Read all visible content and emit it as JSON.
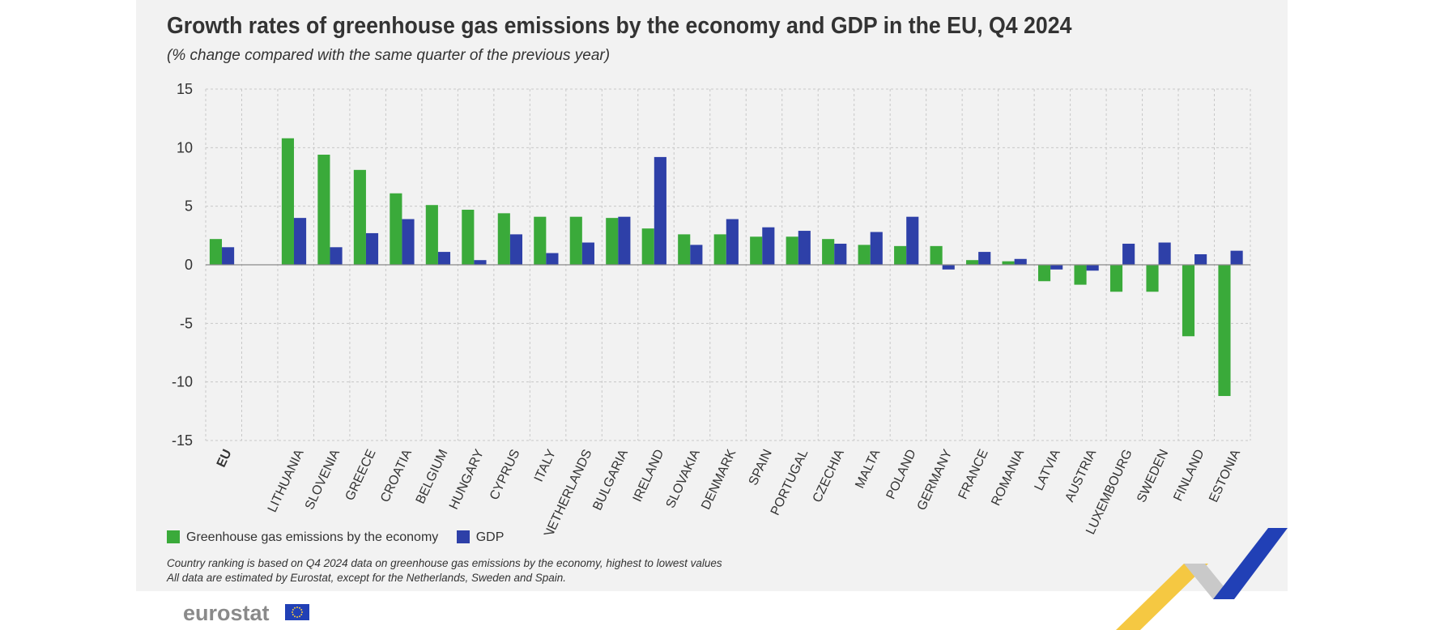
{
  "title": "Growth rates of greenhouse gas emissions by the economy and GDP in the EU, Q4 2024",
  "subtitle": "(% change compared with the same quarter of the previous year)",
  "notes": [
    "Country ranking is based on Q4 2024 data on greenhouse gas emissions by the economy, highest to lowest values",
    "All data are estimated by Eurostat, except for the Netherlands, Sweden and Spain."
  ],
  "logo_text": "eurostat",
  "colors": {
    "ghg": "#3aaa3a",
    "gdp": "#2e40a8",
    "grid": "#c8c8c8",
    "axis": "#8a8a8a",
    "text": "#333333",
    "ribbon_yellow": "#f5c842",
    "ribbon_blue": "#2140b6",
    "ribbon_grey": "#c9c9c9"
  },
  "chart_data": {
    "type": "bar",
    "categories": [
      "EU",
      "LITHUANIA",
      "SLOVENIA",
      "GREECE",
      "CROATIA",
      "BELGIUM",
      "HUNGARY",
      "CYPRUS",
      "ITALY",
      "NETHERLANDS",
      "BULGARIA",
      "IRELAND",
      "SLOVAKIA",
      "DENMARK",
      "SPAIN",
      "PORTUGAL",
      "CZECHIA",
      "MALTA",
      "POLAND",
      "GERMANY",
      "FRANCE",
      "ROMANIA",
      "LATVIA",
      "AUSTRIA",
      "LUXEMBOURG",
      "SWEDEN",
      "FINLAND",
      "ESTONIA"
    ],
    "series": [
      {
        "name": "Greenhouse gas emissions by the economy",
        "values": [
          2.2,
          10.8,
          9.4,
          8.1,
          6.1,
          5.1,
          4.7,
          4.4,
          4.1,
          4.1,
          4.0,
          3.1,
          2.6,
          2.6,
          2.4,
          2.4,
          2.2,
          1.7,
          1.6,
          1.6,
          0.4,
          0.3,
          -1.4,
          -1.7,
          -2.3,
          -2.3,
          -6.1,
          -11.2
        ]
      },
      {
        "name": "GDP",
        "values": [
          1.5,
          4.0,
          1.5,
          2.7,
          3.9,
          1.1,
          0.4,
          2.6,
          1.0,
          1.9,
          4.1,
          9.2,
          1.7,
          3.9,
          3.2,
          2.9,
          1.8,
          2.8,
          4.1,
          -0.4,
          1.1,
          0.5,
          -0.4,
          -0.5,
          1.8,
          1.9,
          0.9,
          1.2
        ]
      }
    ],
    "y_ticks": [
      "15",
      "10",
      "5",
      "0",
      "-5",
      "-10",
      "-15"
    ],
    "ylim": [
      -15,
      15
    ],
    "grid": true,
    "legend": "bottom-left"
  }
}
